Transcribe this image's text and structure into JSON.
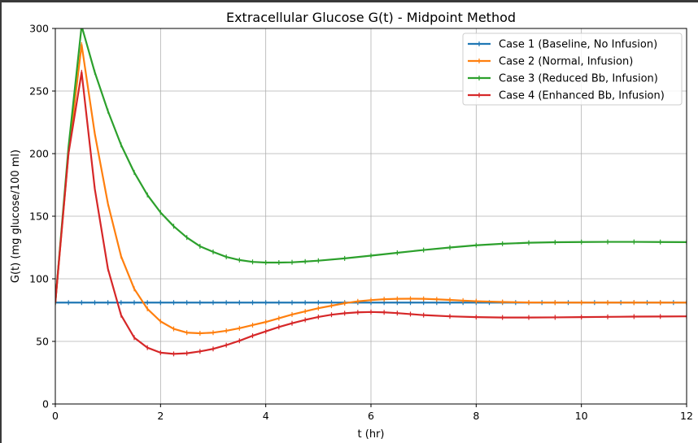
{
  "chart_data": {
    "type": "line",
    "title": "Extracellular Glucose G(t) - Midpoint Method",
    "xlabel": "t (hr)",
    "ylabel": "G(t) (mg glucose/100 ml)",
    "xlim": [
      0,
      12
    ],
    "ylim": [
      0,
      300
    ],
    "xticks": [
      "0",
      "2",
      "4",
      "6",
      "8",
      "10",
      "12"
    ],
    "yticks": [
      "0",
      "50",
      "100",
      "150",
      "200",
      "250",
      "300"
    ],
    "grid": true,
    "legend_position": "top-right",
    "series": [
      {
        "name": "Case 1 (Baseline, No Infusion)",
        "color": "#1f77b4",
        "x": [
          0,
          12
        ],
        "y": [
          81,
          81
        ]
      },
      {
        "name": "Case 2 (Normal, Infusion)",
        "color": "#ff7f0e",
        "x": [
          0,
          0.25,
          0.5,
          0.75,
          1.0,
          1.25,
          1.5,
          1.75,
          2.0,
          2.25,
          2.5,
          2.75,
          3.0,
          3.25,
          3.5,
          3.75,
          4.0,
          4.25,
          4.5,
          4.75,
          5.0,
          5.25,
          5.5,
          5.75,
          6.0,
          6.25,
          6.5,
          6.75,
          7.0,
          7.25,
          7.5,
          7.75,
          8.0,
          8.5,
          9.0,
          9.5,
          10.0,
          10.5,
          11.0,
          11.5,
          12.0
        ],
        "y": [
          81,
          200,
          287,
          216,
          160,
          118,
          92,
          76,
          66,
          60,
          57,
          56.5,
          57,
          58.5,
          60.5,
          63,
          65.5,
          68.5,
          71.5,
          74,
          76.5,
          78.5,
          80.5,
          82,
          83,
          83.7,
          84,
          84.1,
          84,
          83.6,
          83.1,
          82.6,
          82.1,
          81.5,
          81.1,
          81,
          81,
          81,
          81,
          81,
          81
        ]
      },
      {
        "name": "Case 3 (Reduced Bb, Infusion)",
        "color": "#2ca02c",
        "x": [
          0,
          0.25,
          0.5,
          0.75,
          1.0,
          1.25,
          1.5,
          1.75,
          2.0,
          2.25,
          2.5,
          2.75,
          3.0,
          3.25,
          3.5,
          3.75,
          4.0,
          4.25,
          4.5,
          4.75,
          5.0,
          5.5,
          6.0,
          6.5,
          7.0,
          7.5,
          8.0,
          8.5,
          9.0,
          9.5,
          10.0,
          10.5,
          11.0,
          11.5,
          12.0
        ],
        "y": [
          81,
          205,
          302,
          265,
          234,
          207,
          185,
          167,
          153,
          142,
          133,
          126,
          121.5,
          117.5,
          115,
          113.5,
          113,
          113,
          113.2,
          113.8,
          114.5,
          116.3,
          118.5,
          120.8,
          123,
          125,
          126.8,
          128,
          128.8,
          129.2,
          129.4,
          129.5,
          129.5,
          129.4,
          129.3
        ]
      },
      {
        "name": "Case 4 (Enhanced Bb, Infusion)",
        "color": "#d62728",
        "x": [
          0,
          0.25,
          0.5,
          0.75,
          1.0,
          1.25,
          1.5,
          1.75,
          2.0,
          2.25,
          2.5,
          2.75,
          3.0,
          3.25,
          3.5,
          3.75,
          4.0,
          4.25,
          4.5,
          4.75,
          5.0,
          5.25,
          5.5,
          5.75,
          6.0,
          6.25,
          6.5,
          6.75,
          7.0,
          7.5,
          8.0,
          8.5,
          9.0,
          9.5,
          10.0,
          10.5,
          11.0,
          11.5,
          12.0
        ],
        "y": [
          81,
          200,
          265,
          172,
          108,
          71,
          53,
          45,
          41,
          40,
          40.5,
          42,
          44,
          47,
          50.5,
          54.5,
          58,
          61.5,
          64.5,
          67.2,
          69.5,
          71.3,
          72.5,
          73.2,
          73.5,
          73.2,
          72.6,
          71.8,
          71,
          70,
          69.4,
          69.1,
          69.1,
          69.2,
          69.4,
          69.6,
          69.8,
          69.9,
          70
        ]
      }
    ]
  }
}
